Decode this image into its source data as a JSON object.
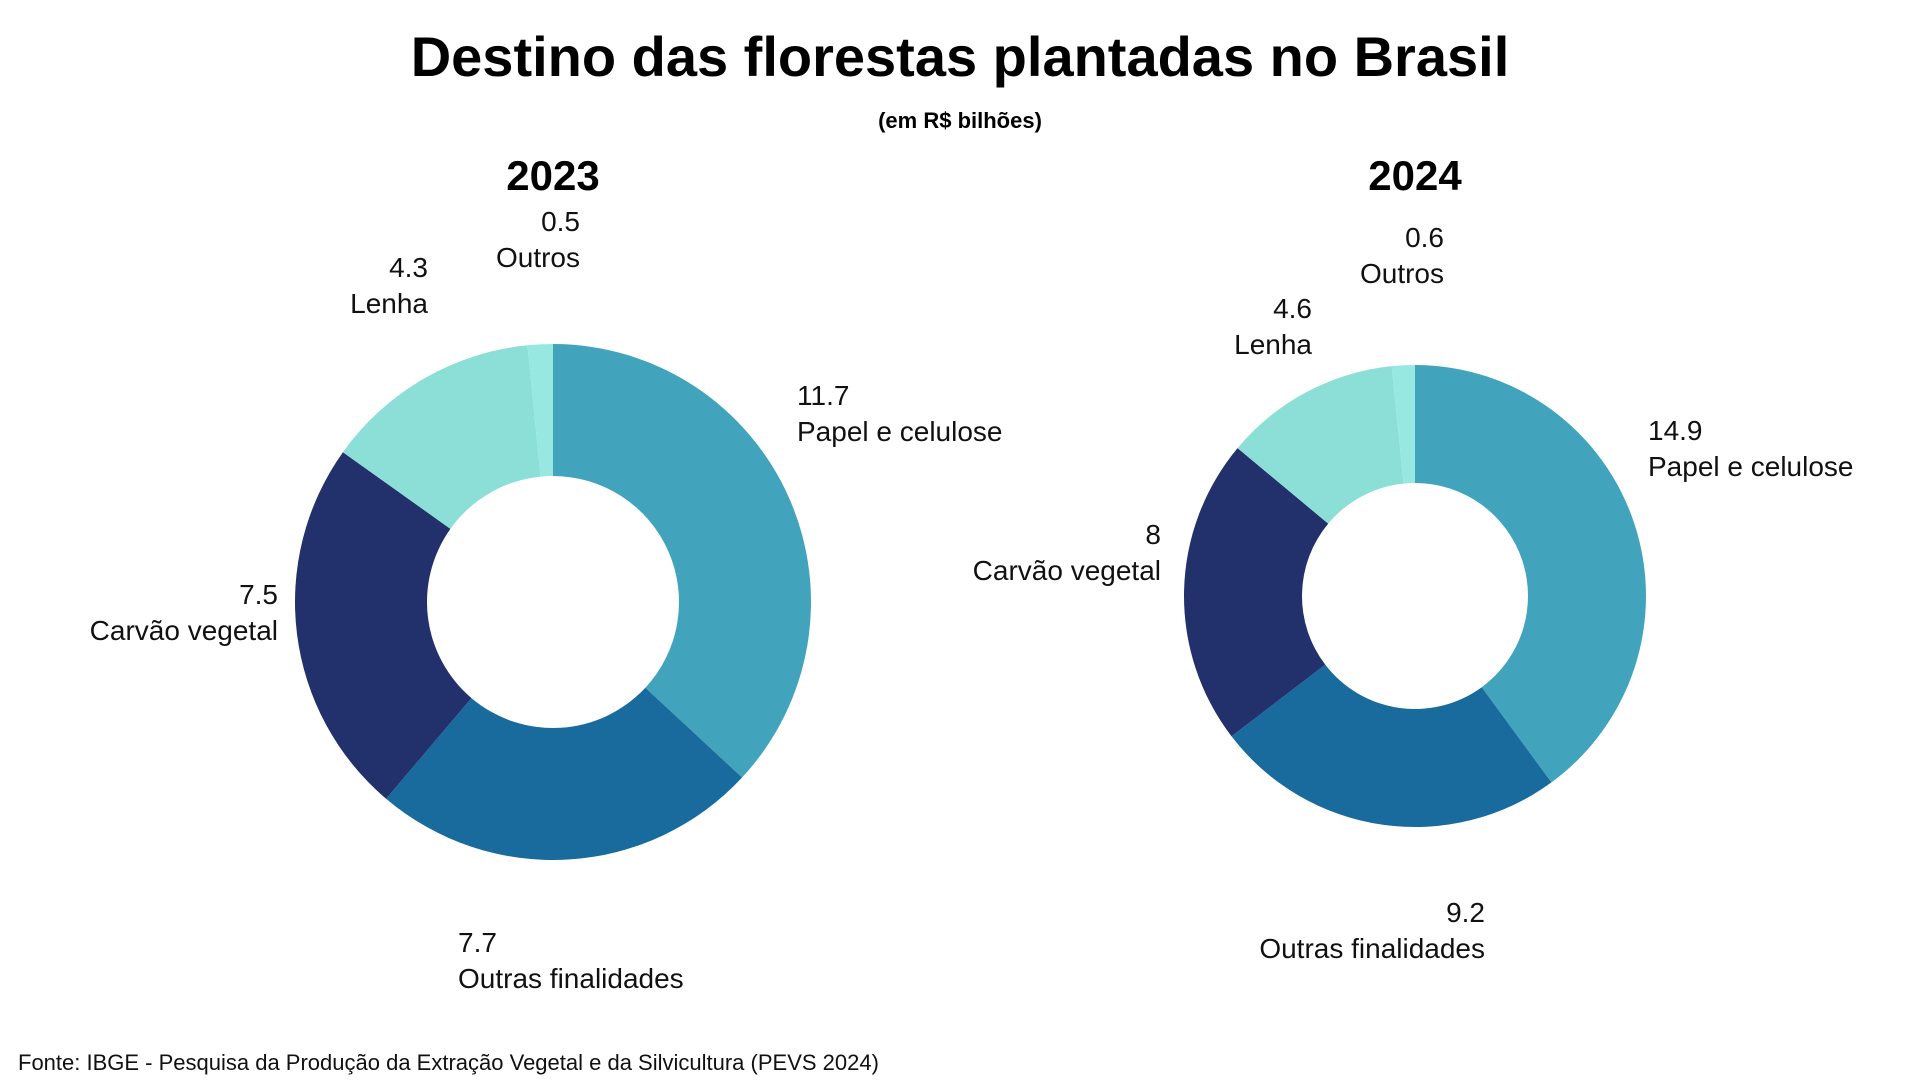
{
  "title": "Destino das florestas plantadas no Brasil",
  "subtitle": "(em R$ bilhões)",
  "source": "Fonte: IBGE - Pesquisa da Produção da Extração Vegetal e da Silvicultura (PEVS 2024)",
  "colors": {
    "Papel e celulose": "#42A4BC",
    "Outras finalidades": "#196B9D",
    "Carvão vegetal": "#22306B",
    "Lenha": "#8BDFD6",
    "Outros": "#98E8E2"
  },
  "chart_data": [
    {
      "type": "pie",
      "donut": true,
      "title": "2023",
      "categories": [
        "Papel e celulose",
        "Outras finalidades",
        "Carvão vegetal",
        "Lenha",
        "Outros"
      ],
      "values": [
        11.7,
        7.7,
        7.5,
        4.3,
        0.5
      ],
      "value_labels": [
        "11.7",
        "7.7",
        "7.5",
        "4.3",
        "0.5"
      ]
    },
    {
      "type": "pie",
      "donut": true,
      "title": "2024",
      "categories": [
        "Papel e celulose",
        "Outras finalidades",
        "Carvão vegetal",
        "Lenha",
        "Outros"
      ],
      "values": [
        14.9,
        9.2,
        8,
        4.6,
        0.6
      ],
      "value_labels": [
        "14.9",
        "9.2",
        "8",
        "4.6",
        "0.6"
      ]
    }
  ]
}
